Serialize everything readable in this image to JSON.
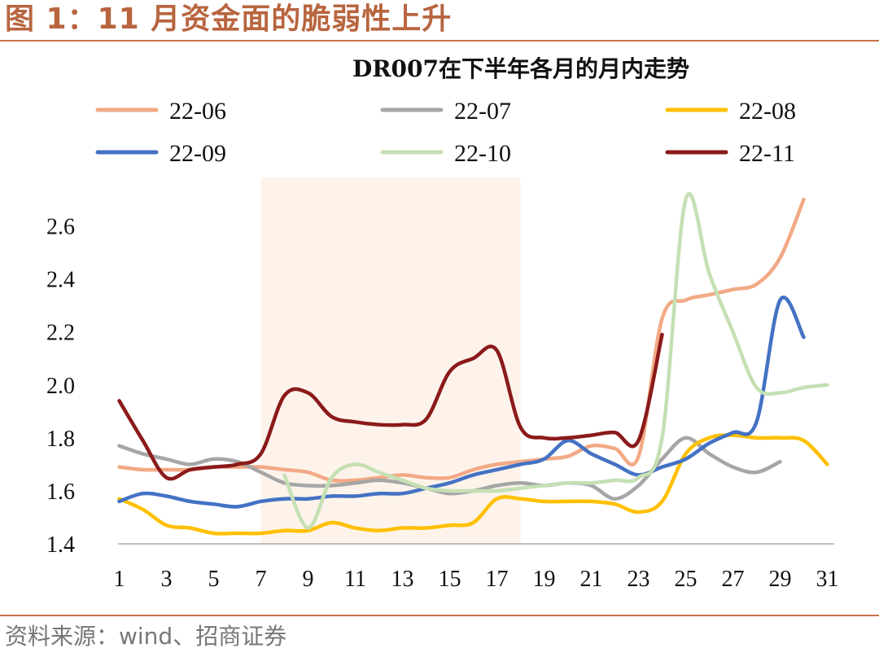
{
  "figure": {
    "title": "图 1：11 月资金面的脆弱性上升",
    "source": "资料来源：wind、招商证券"
  },
  "chart_data": {
    "type": "line",
    "title": "DR007在下半年各月的月内走势",
    "xlabel": "",
    "ylabel": "",
    "xlim": [
      1,
      31
    ],
    "ylim": [
      1.4,
      2.7
    ],
    "x_ticks": [
      1,
      3,
      5,
      7,
      9,
      11,
      13,
      15,
      17,
      19,
      21,
      23,
      25,
      27,
      29,
      31
    ],
    "y_ticks": [
      1.4,
      1.6,
      1.8,
      2.0,
      2.2,
      2.4,
      2.6
    ],
    "grid": false,
    "legend": "top",
    "highlight_band": [
      7,
      18
    ],
    "series": [
      {
        "name": "22-06",
        "color": "#f2a985",
        "x": [
          1,
          2,
          3,
          4,
          5,
          6,
          7,
          8,
          9,
          10,
          11,
          12,
          13,
          14,
          15,
          16,
          17,
          18,
          19,
          20,
          21,
          22,
          23,
          24,
          25,
          26,
          27,
          28,
          29,
          30
        ],
        "values": [
          1.69,
          1.68,
          1.68,
          1.68,
          1.69,
          1.69,
          1.69,
          1.68,
          1.67,
          1.64,
          1.64,
          1.65,
          1.66,
          1.65,
          1.65,
          1.68,
          1.7,
          1.71,
          1.72,
          1.73,
          1.77,
          1.76,
          1.73,
          2.25,
          2.32,
          2.34,
          2.36,
          2.38,
          2.48,
          2.7
        ]
      },
      {
        "name": "22-07",
        "color": "#a6a6a6",
        "x": [
          1,
          2,
          3,
          4,
          5,
          6,
          7,
          8,
          9,
          10,
          11,
          12,
          13,
          14,
          15,
          16,
          17,
          18,
          19,
          20,
          21,
          22,
          23,
          24,
          25,
          26,
          27,
          28,
          29
        ],
        "values": [
          1.77,
          1.74,
          1.72,
          1.7,
          1.72,
          1.71,
          1.67,
          1.63,
          1.62,
          1.62,
          1.63,
          1.64,
          1.63,
          1.61,
          1.59,
          1.6,
          1.62,
          1.63,
          1.62,
          1.63,
          1.62,
          1.57,
          1.62,
          1.72,
          1.8,
          1.74,
          1.69,
          1.67,
          1.71
        ]
      },
      {
        "name": "22-08",
        "color": "#ffc000",
        "x": [
          1,
          2,
          3,
          4,
          5,
          6,
          7,
          8,
          9,
          10,
          11,
          12,
          13,
          14,
          15,
          16,
          17,
          18,
          19,
          20,
          21,
          22,
          23,
          24,
          25,
          26,
          27,
          28,
          29,
          30,
          31
        ],
        "values": [
          1.57,
          1.53,
          1.47,
          1.46,
          1.44,
          1.44,
          1.44,
          1.45,
          1.45,
          1.48,
          1.46,
          1.45,
          1.46,
          1.46,
          1.47,
          1.48,
          1.57,
          1.57,
          1.56,
          1.56,
          1.56,
          1.55,
          1.52,
          1.56,
          1.74,
          1.8,
          1.81,
          1.8,
          1.8,
          1.79,
          1.7
        ]
      },
      {
        "name": "22-09",
        "color": "#4472c4",
        "x": [
          1,
          2,
          3,
          4,
          5,
          6,
          7,
          8,
          9,
          10,
          11,
          12,
          13,
          14,
          15,
          16,
          17,
          18,
          19,
          20,
          21,
          22,
          23,
          24,
          25,
          26,
          27,
          28,
          29,
          30
        ],
        "values": [
          1.56,
          1.59,
          1.58,
          1.56,
          1.55,
          1.54,
          1.56,
          1.57,
          1.57,
          1.58,
          1.58,
          1.59,
          1.59,
          1.61,
          1.63,
          1.66,
          1.68,
          1.7,
          1.72,
          1.79,
          1.74,
          1.7,
          1.66,
          1.69,
          1.72,
          1.78,
          1.82,
          1.86,
          2.32,
          2.18
        ]
      },
      {
        "name": "22-10",
        "color": "#c5e0b4",
        "x": [
          8,
          9,
          10,
          11,
          12,
          13,
          14,
          15,
          16,
          17,
          18,
          19,
          20,
          21,
          22,
          23,
          24,
          25,
          26,
          27,
          28,
          29,
          30,
          31
        ],
        "values": [
          1.66,
          1.46,
          1.65,
          1.7,
          1.67,
          1.64,
          1.61,
          1.6,
          1.6,
          1.6,
          1.61,
          1.62,
          1.63,
          1.63,
          1.64,
          1.65,
          1.8,
          2.7,
          2.42,
          2.2,
          1.99,
          1.97,
          1.99,
          2.0
        ]
      },
      {
        "name": "22-11",
        "color": "#8b1a1a",
        "x": [
          1,
          2,
          3,
          4,
          5,
          6,
          7,
          8,
          9,
          10,
          11,
          12,
          13,
          14,
          15,
          16,
          17,
          18,
          19,
          20,
          21,
          22,
          23,
          24
        ],
        "values": [
          1.94,
          1.79,
          1.65,
          1.68,
          1.69,
          1.7,
          1.74,
          1.96,
          1.97,
          1.88,
          1.86,
          1.85,
          1.85,
          1.87,
          2.05,
          2.1,
          2.13,
          1.84,
          1.8,
          1.8,
          1.81,
          1.82,
          1.79,
          2.19
        ]
      }
    ]
  }
}
